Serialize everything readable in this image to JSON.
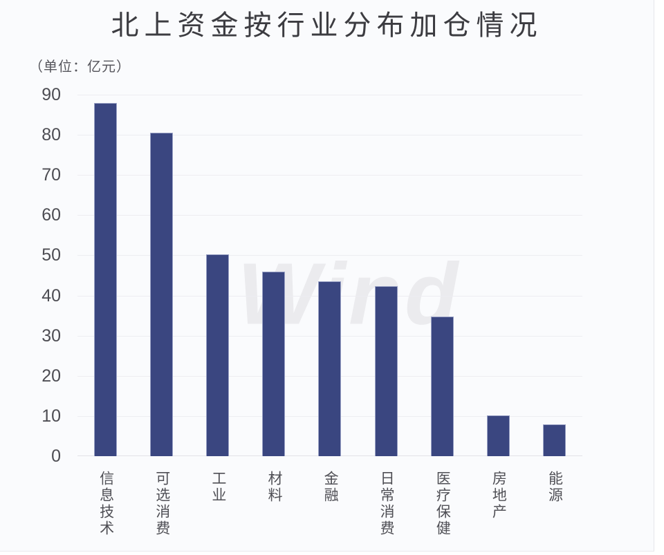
{
  "page": {
    "background": "#ffffff",
    "panel_background": "#fafbfd",
    "right_divider_color": "#e6e6ea",
    "bottom_border_color": "#e9e9ed"
  },
  "chart_data": {
    "type": "bar",
    "title": "北上资金按行业分布加仓情况",
    "unit_label": "（单位：亿元）",
    "categories": [
      "信息技术",
      "可选消费",
      "工业",
      "材料",
      "金融",
      "日常消费",
      "医疗保健",
      "房地产",
      "能源"
    ],
    "values": [
      88,
      80.5,
      50.3,
      46,
      43.5,
      42.4,
      34.7,
      10.2,
      8
    ],
    "y_ticks": [
      0,
      10,
      20,
      30,
      40,
      50,
      60,
      70,
      80,
      90
    ],
    "ylim": [
      0,
      90
    ],
    "xlabel": "",
    "ylabel": "",
    "grid": true,
    "legend_position": "none",
    "watermark": "Wind",
    "colors": {
      "bar_fill": "#3a4680",
      "bar_border": "#9ba3c6",
      "gridline": "#ededf1",
      "axis_line": "#e2e2e7",
      "watermark": "#ebebee",
      "tick_text": "#4d4d53",
      "category_text": "#4f4f55",
      "title_text": "#3c3c41"
    }
  }
}
